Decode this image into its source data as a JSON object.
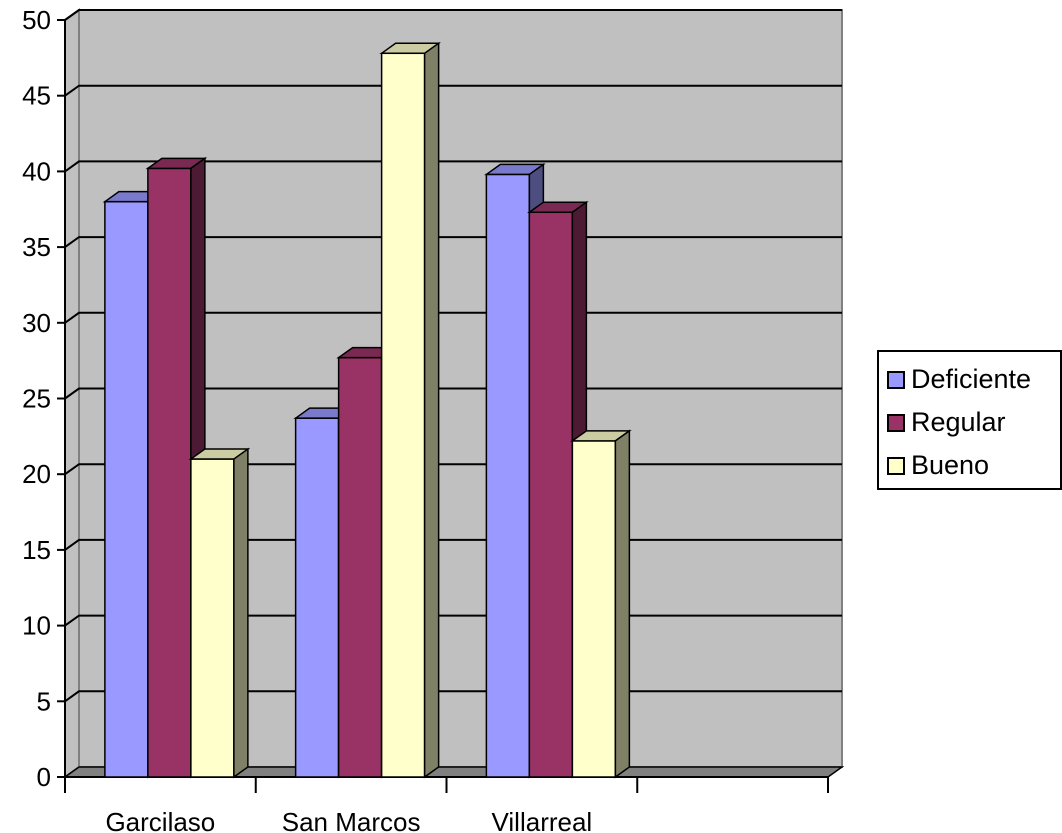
{
  "chart_data": {
    "type": "bar",
    "title": "",
    "xlabel": "",
    "ylabel": "",
    "categories": [
      "Garcilaso",
      "San Marcos",
      "Villarreal",
      ""
    ],
    "series": [
      {
        "name": "Deficiente",
        "color": "#9999FF",
        "values": [
          38,
          23.7,
          39.8,
          null
        ]
      },
      {
        "name": "Regular",
        "color": "#993366",
        "values": [
          40.2,
          27.7,
          37.3,
          null
        ]
      },
      {
        "name": "Bueno",
        "color": "#FFFFCC",
        "values": [
          21,
          47.8,
          22.2,
          null
        ]
      }
    ],
    "ylim": [
      0,
      50
    ],
    "yticks": [
      "0",
      "5",
      "10",
      "15",
      "20",
      "25",
      "30",
      "35",
      "40",
      "45",
      "50"
    ],
    "grid": true,
    "legend_position": "right",
    "style": "3d-column",
    "wall_color": "#C0C0C0",
    "floor_color": "#808080"
  }
}
